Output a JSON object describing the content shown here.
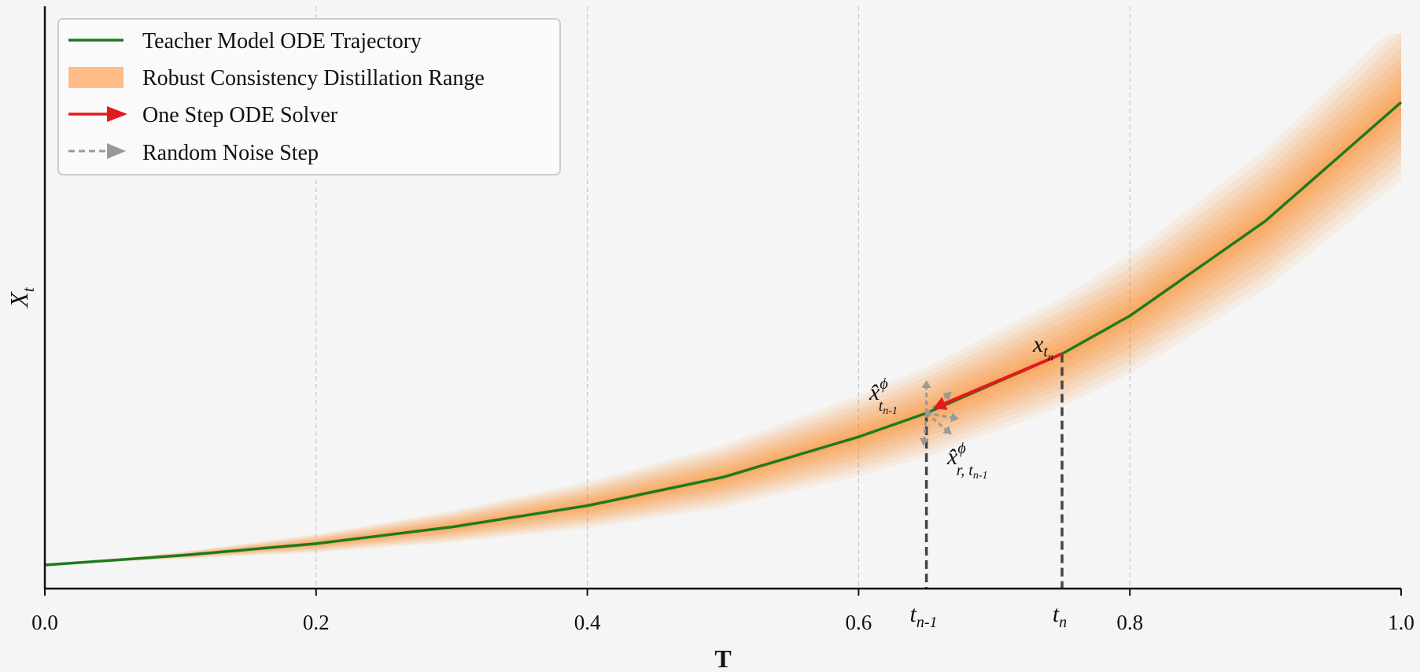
{
  "chart_data": {
    "type": "line",
    "title": "",
    "xlabel": "T",
    "ylabel": "X",
    "ylabel_subscript": "t",
    "xlim": [
      0.0,
      1.0
    ],
    "x_ticks": [
      "0.0",
      "0.2",
      "0.4",
      "0.6",
      "0.8",
      "1.0"
    ],
    "x_tick_values": [
      0.0,
      0.2,
      0.4,
      0.6,
      0.8,
      1.0
    ],
    "grid": "vertical dashed",
    "legend_placement": "top-left",
    "series": [
      {
        "name": "Teacher Model ODE Trajectory",
        "kind": "line",
        "color": "#1f7a1f",
        "x": [
          0.0,
          0.1,
          0.2,
          0.3,
          0.4,
          0.5,
          0.6,
          0.65,
          0.75,
          0.8,
          0.9,
          1.0
        ],
        "y": [
          0.05,
          0.09,
          0.14,
          0.21,
          0.3,
          0.42,
          0.59,
          0.69,
          0.94,
          1.1,
          1.5,
          2.0
        ]
      },
      {
        "name": "Robust Consistency Distillation Range",
        "kind": "band",
        "color": "#ff7f0e",
        "fill": "#ffbb88"
      },
      {
        "name": "One Step ODE Solver",
        "kind": "arrow",
        "color": "#e31a1c",
        "from": [
          0.75,
          0.94
        ],
        "to": [
          0.655,
          0.7
        ]
      },
      {
        "name": "Random Noise Step",
        "kind": "dashed-arrows",
        "color": "#999999"
      }
    ],
    "markers": [
      {
        "label": "t",
        "label_subscript": "n-1",
        "x": 0.65
      },
      {
        "label": "t",
        "label_subscript": "n",
        "x": 0.75
      }
    ],
    "annotations": [
      {
        "text": "x",
        "subscript": "t",
        "subsubscript": "n",
        "at": "t_n point"
      },
      {
        "text": "x̂",
        "superscript": "ϕ",
        "subscript": "t",
        "subsubscript": "n-1",
        "at": "above t_n-1 point"
      },
      {
        "text": "x̂",
        "superscript": "ϕ",
        "subscript": "r, t",
        "subsubscript": "n-1",
        "at": "below right of t_n-1 point"
      }
    ]
  }
}
